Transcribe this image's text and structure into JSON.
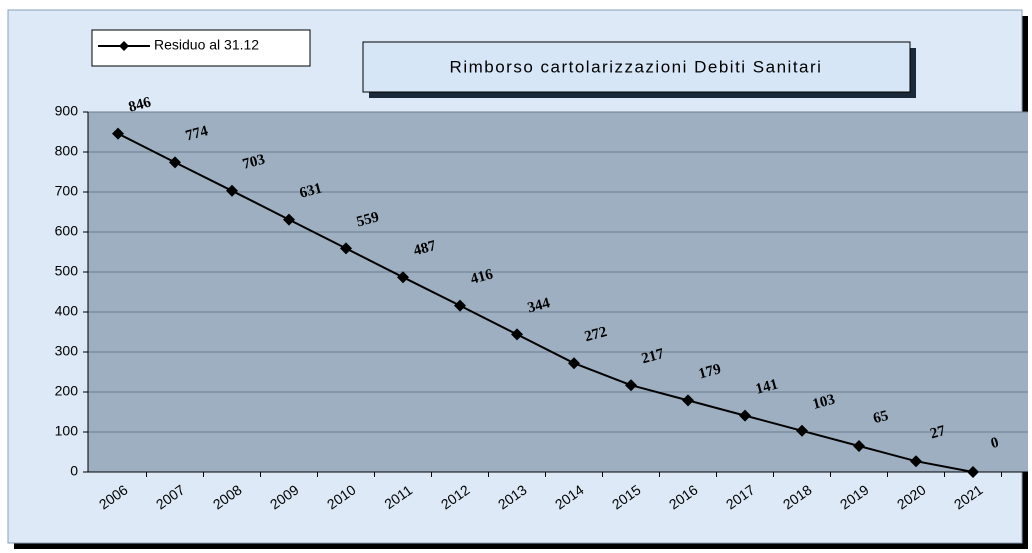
{
  "chart_data": {
    "type": "line",
    "title": "Rimborso cartolarizzazioni Debiti Sanitari",
    "categories": [
      "2006",
      "2007",
      "2008",
      "2009",
      "2010",
      "2011",
      "2012",
      "2013",
      "2014",
      "2015",
      "2016",
      "2017",
      "2018",
      "2019",
      "2020",
      "2021"
    ],
    "series": [
      {
        "name": "Residuo al 31.12",
        "color": "#000000",
        "values": [
          846,
          774,
          703,
          631,
          559,
          487,
          416,
          344,
          272,
          217,
          179,
          141,
          103,
          65,
          27,
          0
        ]
      }
    ],
    "ylim": [
      0,
      900
    ],
    "yticks": [
      0,
      100,
      200,
      300,
      400,
      500,
      600,
      700,
      800,
      900
    ],
    "grid": true
  }
}
